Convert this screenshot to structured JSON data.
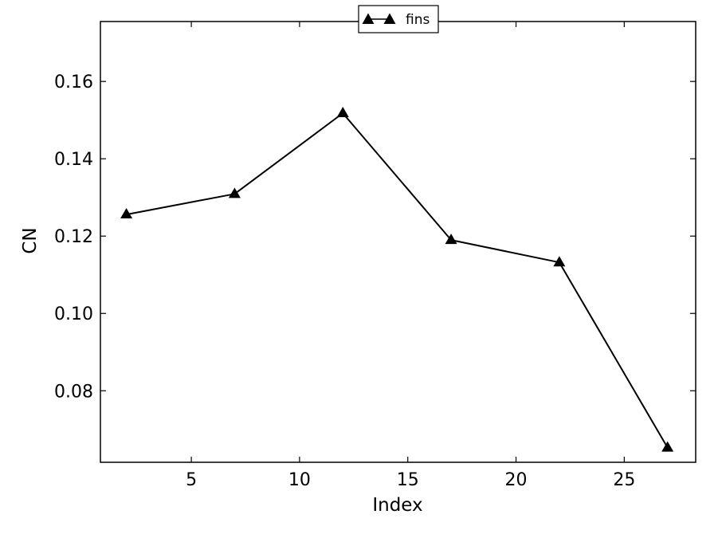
{
  "chart_data": {
    "type": "line",
    "title": "",
    "xlabel": "Index",
    "ylabel": "CN",
    "xlim": [
      0.8,
      28.3
    ],
    "ylim": [
      0.0615,
      0.1755
    ],
    "x_ticks": [
      5,
      10,
      15,
      20,
      25
    ],
    "y_ticks": [
      0.08,
      0.1,
      0.12,
      0.14,
      0.16
    ],
    "y_tick_labels": [
      "0.08",
      "0.10",
      "0.12",
      "0.14",
      "0.16"
    ],
    "grid": false,
    "legend_position": "top-center",
    "series": [
      {
        "name": "fins",
        "marker": "triangle-up",
        "color": "#000000",
        "x": [
          2,
          7,
          12,
          17,
          22,
          27
        ],
        "y": [
          0.1256,
          0.1309,
          0.1518,
          0.119,
          0.1132,
          0.0653
        ]
      }
    ]
  }
}
